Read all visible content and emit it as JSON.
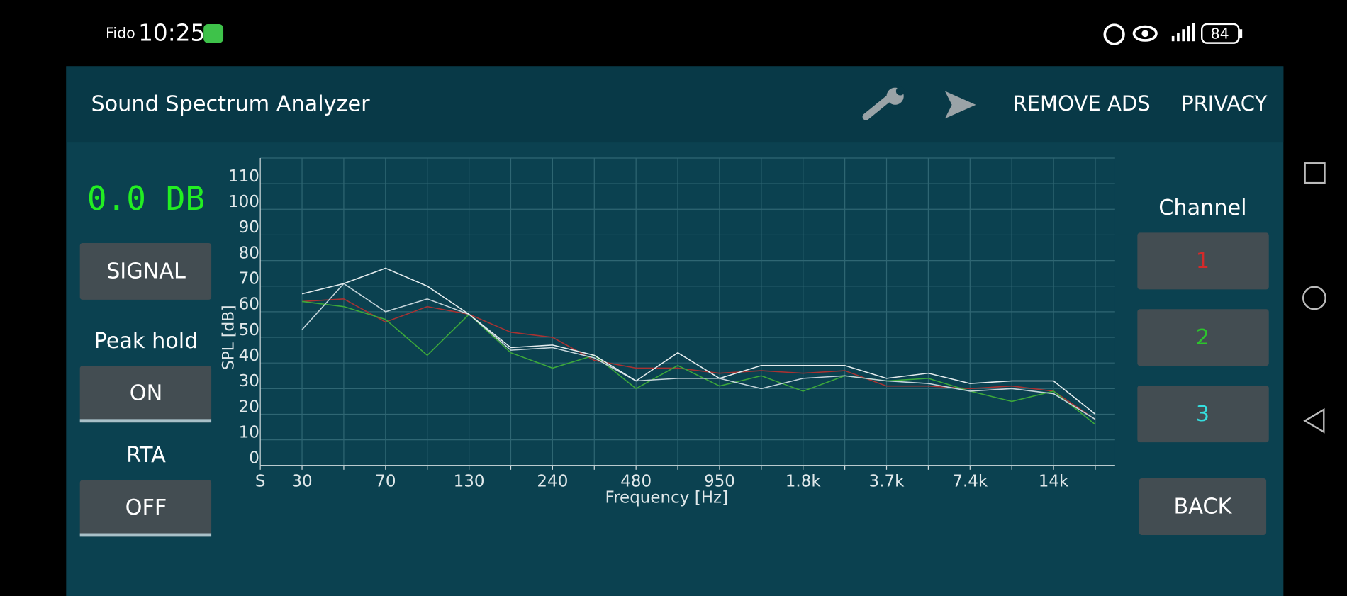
{
  "status_bar": {
    "carrier": "Fido",
    "time": "10:25",
    "battery": "84"
  },
  "app_bar": {
    "title": "Sound Spectrum Analyzer",
    "actions": [
      "REMOVE ADS",
      "PRIVACY"
    ]
  },
  "left_panel": {
    "level": "0.0 DB",
    "signal_button": "SIGNAL",
    "peak_hold_label": "Peak hold",
    "peak_hold_button": "ON",
    "rta_label": "RTA",
    "rta_button": "OFF"
  },
  "right_panel": {
    "channel_label": "Channel",
    "channel_colors": [
      "#d42a2a",
      "#2cc42c",
      "#35dede"
    ],
    "back_button": "BACK"
  },
  "chart_data": {
    "type": "line",
    "y_label": "SPL [dB]",
    "x_label": "Frequency [Hz]",
    "categories": [
      "S",
      "30",
      null,
      "70",
      null,
      "130",
      null,
      "240",
      null,
      "480",
      null,
      "950",
      null,
      "1.8k",
      null,
      "3.7k",
      null,
      "7.4k",
      null,
      "14k",
      null
    ],
    "ylim": [
      0,
      120
    ],
    "yticks": [
      0,
      10,
      20,
      30,
      40,
      50,
      60,
      70,
      80,
      90,
      100,
      110
    ],
    "grid": true,
    "series": [
      {
        "name": "1",
        "color": "#a83232",
        "values": [
          null,
          64,
          65,
          56,
          62,
          59,
          52,
          50,
          41,
          38,
          38,
          36,
          37,
          36,
          37,
          31,
          31,
          30,
          31,
          29,
          18
        ]
      },
      {
        "name": "2",
        "color": "#3ca83a",
        "values": [
          null,
          64,
          62,
          57,
          43,
          59,
          44,
          38,
          43,
          30,
          39,
          31,
          35,
          29,
          35,
          33,
          34,
          29,
          25,
          29,
          16
        ]
      },
      {
        "name": "3",
        "color": "#c4d4da",
        "values": [
          null,
          53,
          71,
          60,
          65,
          59,
          45,
          46,
          42,
          33,
          34,
          34,
          30,
          34,
          35,
          33,
          32,
          29,
          30,
          28,
          18
        ]
      },
      {
        "color": "#e4ecee",
        "values": [
          null,
          67,
          71,
          77,
          70,
          59,
          46,
          47,
          43,
          33,
          44,
          34,
          39,
          39,
          39,
          34,
          36,
          32,
          33,
          33,
          20
        ]
      }
    ]
  }
}
